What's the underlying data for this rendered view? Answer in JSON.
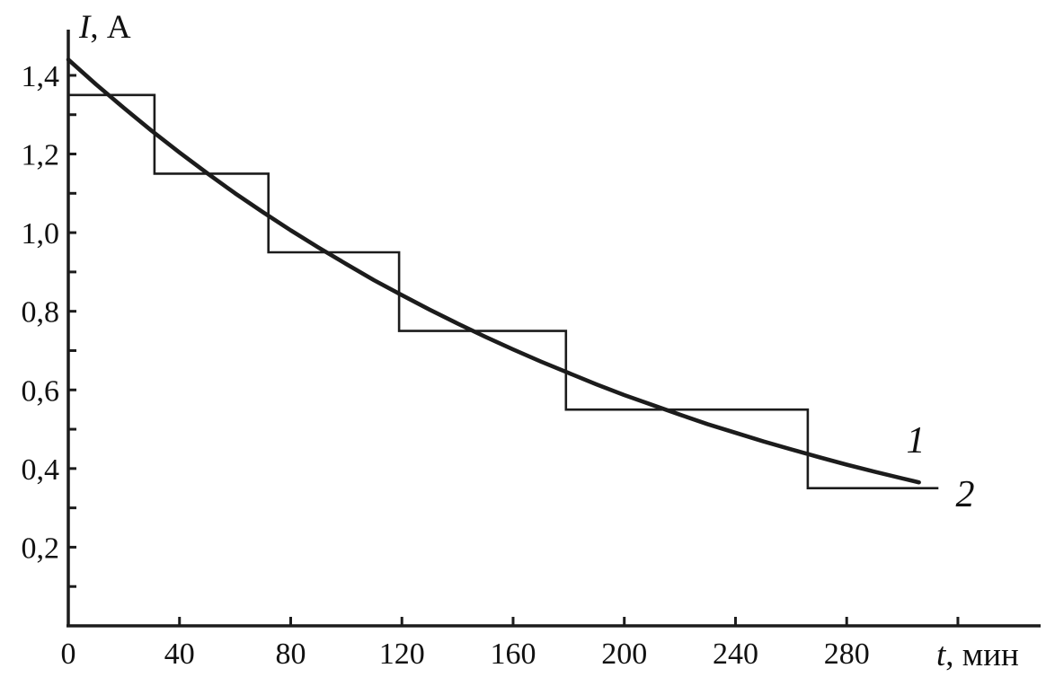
{
  "figure": {
    "background": "#ffffff",
    "line_color": "#1c1c1c",
    "y_axis_title_italic": "I",
    "y_axis_title_rest": ", А",
    "x_axis_title_italic": "t",
    "x_axis_title_rest": ", мин",
    "curve1_label": "1",
    "curve2_label": "2"
  },
  "chart_data": {
    "type": "line",
    "title": "",
    "xlabel": "t, мин",
    "ylabel": "I, А",
    "xlim": [
      0,
      350
    ],
    "ylim": [
      0,
      1.52
    ],
    "grid": false,
    "legend_position": "inline-right",
    "x_tick_values": [
      0,
      40,
      80,
      120,
      160,
      200,
      240,
      280,
      320
    ],
    "x_tick_labels": [
      "0",
      "40",
      "80",
      "120",
      "160",
      "200",
      "240",
      "280",
      ""
    ],
    "y_major_tick_values": [
      1.4,
      1.2,
      1.0,
      0.8,
      0.6,
      0.4,
      0.2
    ],
    "y_major_tick_labels": [
      "1,4",
      "1,2",
      "1,0",
      "0,8",
      "0,6",
      "0,4",
      "0,2"
    ],
    "y_minor_tick_values": [
      0.1,
      0.2,
      0.3,
      0.4,
      0.5,
      0.6,
      0.7,
      0.8,
      0.9,
      1.0,
      1.1,
      1.2,
      1.3,
      1.4
    ],
    "series": [
      {
        "name": "1",
        "style": "smooth",
        "description": "continuous discharge curve I = 1.44·exp(-t/223)",
        "x": [
          0,
          10,
          20,
          30,
          40,
          50,
          60,
          70,
          80,
          90,
          100,
          110,
          120,
          130,
          140,
          150,
          160,
          170,
          180,
          190,
          200,
          210,
          220,
          230,
          240,
          250,
          260,
          270,
          280,
          290,
          300,
          306
        ],
        "y": [
          1.44,
          1.377,
          1.317,
          1.259,
          1.204,
          1.151,
          1.1,
          1.052,
          1.006,
          0.962,
          0.92,
          0.879,
          0.841,
          0.804,
          0.769,
          0.735,
          0.703,
          0.672,
          0.643,
          0.614,
          0.587,
          0.562,
          0.537,
          0.513,
          0.491,
          0.469,
          0.449,
          0.429,
          0.41,
          0.392,
          0.375,
          0.365
        ]
      },
      {
        "name": "2",
        "style": "step",
        "description": "stepwise approximation of discharge current",
        "steps": [
          {
            "t_start": 0,
            "t_end": 31,
            "level": 1.35
          },
          {
            "t_start": 31,
            "t_end": 72,
            "level": 1.15
          },
          {
            "t_start": 72,
            "t_end": 119,
            "level": 0.95
          },
          {
            "t_start": 119,
            "t_end": 179,
            "level": 0.75
          },
          {
            "t_start": 179,
            "t_end": 266,
            "level": 0.55
          },
          {
            "t_start": 266,
            "t_end": 313,
            "level": 0.35
          }
        ]
      }
    ]
  }
}
